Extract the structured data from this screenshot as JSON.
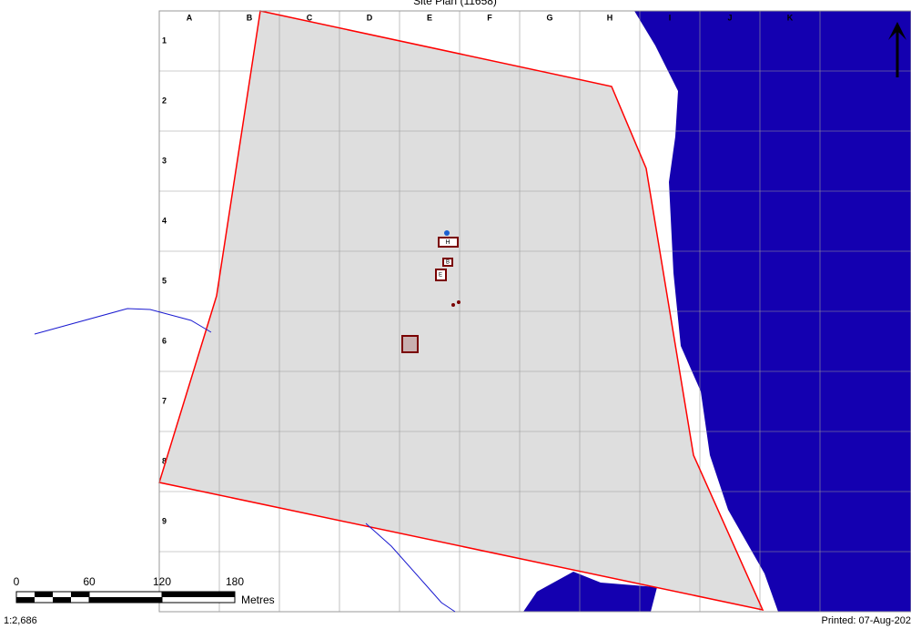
{
  "title": "Site Plan (11658)",
  "columns": [
    "A",
    "B",
    "C",
    "D",
    "E",
    "F",
    "G",
    "H",
    "I",
    "J",
    "K"
  ],
  "rows": [
    "1",
    "2",
    "3",
    "4",
    "5",
    "6",
    "7",
    "8",
    "9"
  ],
  "buildings": [
    "H",
    "B",
    "E"
  ],
  "scale_bar": {
    "labels": [
      "0",
      "60",
      "120",
      "180"
    ],
    "unit": "Metres"
  },
  "scale_ratio": "1:2,686",
  "printed": "Printed: 07-Aug-202"
}
